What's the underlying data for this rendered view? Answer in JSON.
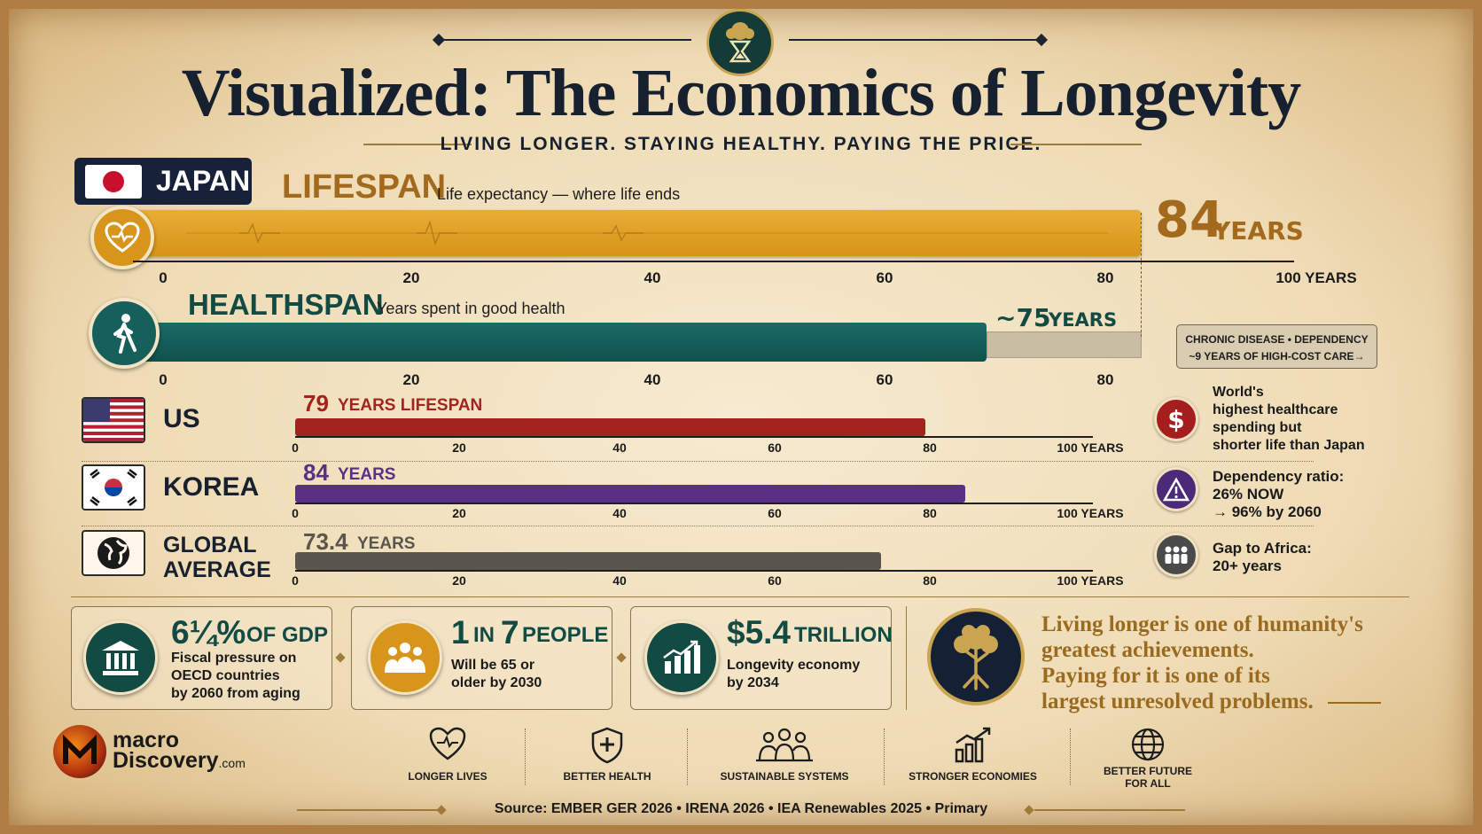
{
  "header": {
    "title": "Visualized: The Economics of Longevity",
    "subtitle": "LIVING LONGER. STAYING HEALTHY. PAYING THE PRICE."
  },
  "japan": {
    "country": "JAPAN",
    "lifespan": {
      "heading": "LIFESPAN",
      "description": "Life expectancy — where life ends",
      "value_num": "84",
      "value_unit": "YEARS",
      "axis_ticks": [
        "0",
        "20",
        "40",
        "60",
        "80",
        "100 YEARS"
      ]
    },
    "healthspan": {
      "heading": "HEALTHSPAN",
      "description": "Years spent in good health",
      "value_num": "~75",
      "value_unit": "YEARS",
      "axis_ticks": [
        "0",
        "20",
        "40",
        "60",
        "80"
      ],
      "callout_line1": "CHRONIC DISEASE • DEPENDENCY",
      "callout_line2": "~9 YEARS OF HIGH-COST CARE→"
    }
  },
  "countries": [
    {
      "name": "US",
      "value_num": "79",
      "value_unit": "YEARS LIFESPAN",
      "color": "#a3231f"
    },
    {
      "name": "KOREA",
      "value_num": "84",
      "value_unit": "YEARS",
      "color": "#5a2f86"
    },
    {
      "name_line1": "GLOBAL",
      "name_line2": "AVERAGE",
      "value_num": "73.4",
      "value_unit": "YEARS",
      "color": "#5a554d"
    }
  ],
  "small_axis_ticks": [
    "0",
    "20",
    "40",
    "60",
    "80",
    "100 YEARS"
  ],
  "side_notes": [
    {
      "lines": [
        "World's",
        "highest healthcare",
        "spending but",
        "shorter life than Japan"
      ],
      "icon": "dollar-icon",
      "color": "#a61d1d"
    },
    {
      "lines": [
        "Dependency ratio:",
        "26% NOW",
        "→ 96% by 2060"
      ],
      "icon": "warning-icon",
      "color": "#4b2a78"
    },
    {
      "lines": [
        "Gap to Africa:",
        "20+ years"
      ],
      "icon": "people-icon",
      "color": "#4a4a4a"
    }
  ],
  "stats": [
    {
      "value_big": "6¼%",
      "value_small": "OF GDP",
      "lines": [
        "Fiscal pressure on",
        "OECD countries",
        "by 2060 from aging"
      ],
      "icon": "bank-icon"
    },
    {
      "value_big": "1",
      "value_small": "IN",
      "value_big2": "7",
      "value_small2": "PEOPLE",
      "lines": [
        "Will be 65 or",
        "older by 2030"
      ],
      "icon": "group-icon"
    },
    {
      "value_big": "$5.4",
      "value_small": "TRILLION",
      "lines": [
        "Longevity economy",
        "by 2034"
      ],
      "icon": "growth-chart-icon"
    }
  ],
  "quote": [
    "Living longer is one of humanity's",
    "greatest achievements.",
    "Paying for it is one of its",
    "largest unresolved problems."
  ],
  "logo": {
    "macro": "macro",
    "discovery": "Discovery",
    "com": ".com"
  },
  "pillars": [
    {
      "label": "LONGER LIVES",
      "icon": "heart-pulse-icon"
    },
    {
      "label": "BETTER HEALTH",
      "icon": "shield-cross-icon"
    },
    {
      "label": "SUSTAINABLE SYSTEMS",
      "icon": "community-icon"
    },
    {
      "label": "STRONGER ECONOMIES",
      "icon": "bar-growth-icon"
    },
    {
      "label_line1": "BETTER FUTURE",
      "label_line2": "FOR ALL",
      "icon": "globe-icon"
    }
  ],
  "source": "Source: EMBER GER 2026  •  IRENA 2026  •  IEA Renewables 2025  •  Primary",
  "chart_data": [
    {
      "type": "bar",
      "categories": [
        "Japan lifespan",
        "Japan healthspan"
      ],
      "values": [
        84,
        75
      ],
      "xlim": [
        0,
        100
      ]
    },
    {
      "type": "bar",
      "categories": [
        "US",
        "KOREA",
        "GLOBAL AVERAGE"
      ],
      "values": [
        79,
        84,
        73.4
      ],
      "xlim": [
        0,
        100
      ]
    }
  ],
  "colors": {
    "lifespan": "#e0a12a",
    "healthspan": "#175f5a",
    "accent_gold": "#9a6a1e",
    "navy": "#16202e"
  }
}
